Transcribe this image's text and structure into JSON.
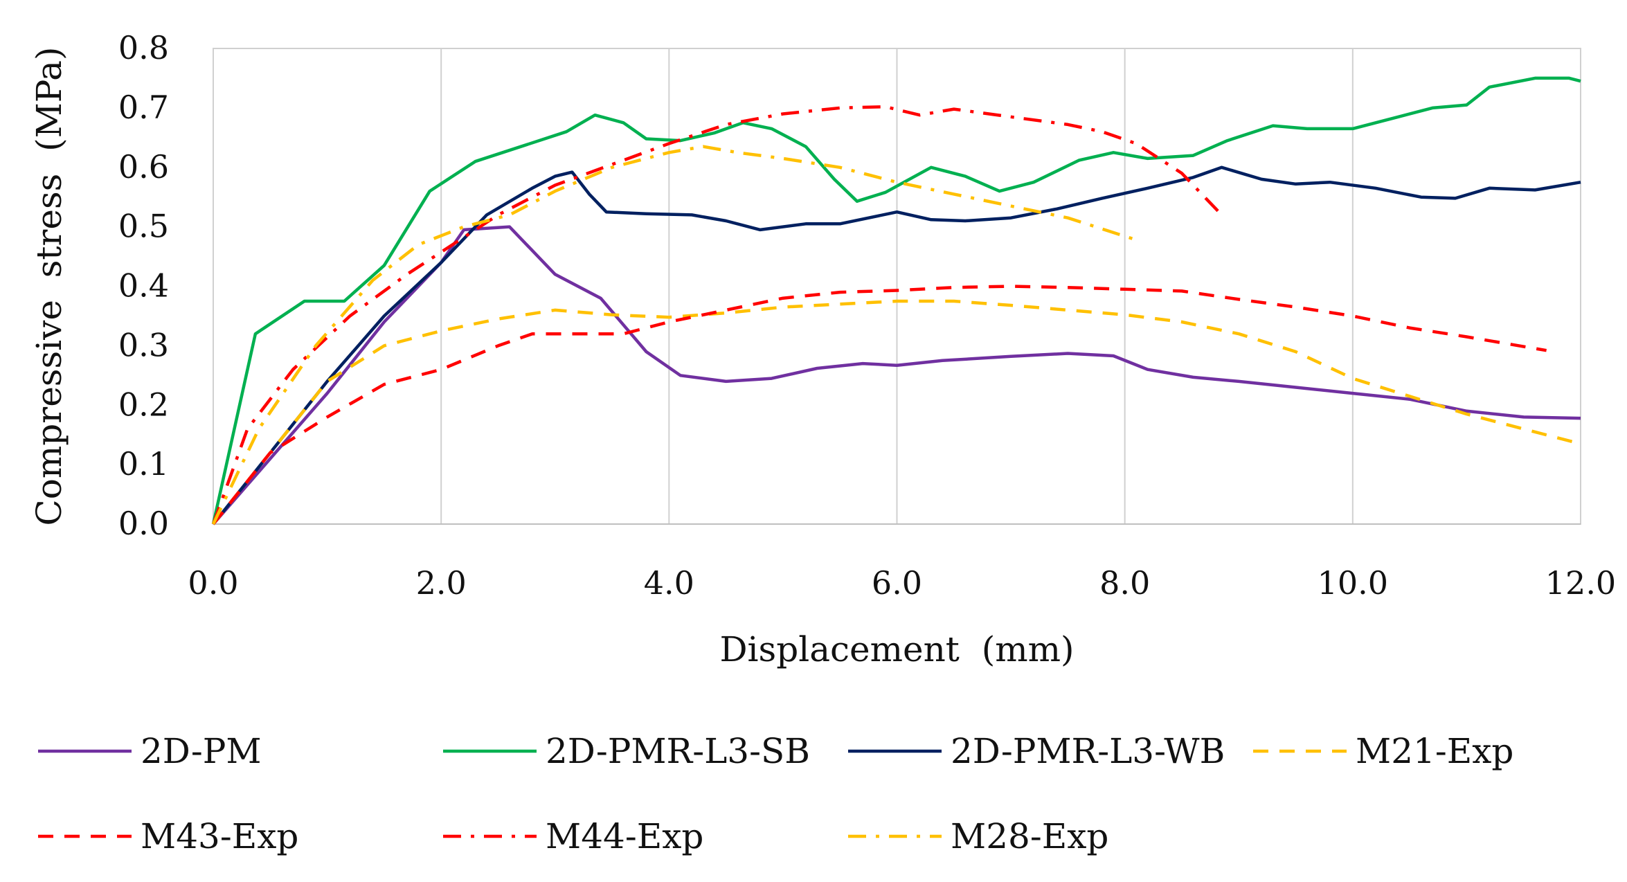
{
  "chart_data": {
    "type": "line",
    "title": "",
    "xlabel": "Displacement  (mm)",
    "ylabel": "Compressive  stress  (MPa)",
    "xlim": [
      0,
      12
    ],
    "ylim": [
      0,
      0.8
    ],
    "xticks": [
      "0.0",
      "2.0",
      "4.0",
      "6.0",
      "8.0",
      "10.0",
      "12.0"
    ],
    "yticks": [
      "0.0",
      "0.1",
      "0.2",
      "0.3",
      "0.4",
      "0.5",
      "0.6",
      "0.7",
      "0.8"
    ],
    "grid": "vertical",
    "legend_position": "bottom",
    "series": [
      {
        "name": "2D-PM",
        "color": "#7030a0",
        "dash": "solid",
        "points": [
          [
            0,
            0
          ],
          [
            0.5,
            0.11
          ],
          [
            1,
            0.22
          ],
          [
            1.5,
            0.34
          ],
          [
            2,
            0.44
          ],
          [
            2.2,
            0.495
          ],
          [
            2.6,
            0.5
          ],
          [
            3,
            0.42
          ],
          [
            3.4,
            0.38
          ],
          [
            3.8,
            0.29
          ],
          [
            4.1,
            0.25
          ],
          [
            4.5,
            0.24
          ],
          [
            4.9,
            0.245
          ],
          [
            5.3,
            0.262
          ],
          [
            5.7,
            0.27
          ],
          [
            6,
            0.267
          ],
          [
            6.4,
            0.275
          ],
          [
            7,
            0.282
          ],
          [
            7.5,
            0.287
          ],
          [
            7.9,
            0.283
          ],
          [
            8.2,
            0.26
          ],
          [
            8.6,
            0.247
          ],
          [
            9,
            0.24
          ],
          [
            9.5,
            0.23
          ],
          [
            10,
            0.22
          ],
          [
            10.5,
            0.21
          ],
          [
            11,
            0.19
          ],
          [
            11.5,
            0.18
          ],
          [
            12,
            0.178
          ]
        ]
      },
      {
        "name": "2D-PMR-L3-SB",
        "color": "#00b050",
        "dash": "solid",
        "points": [
          [
            0,
            0
          ],
          [
            0.37,
            0.32
          ],
          [
            0.8,
            0.375
          ],
          [
            1.15,
            0.375
          ],
          [
            1.5,
            0.435
          ],
          [
            1.9,
            0.56
          ],
          [
            2.3,
            0.61
          ],
          [
            2.7,
            0.635
          ],
          [
            3.1,
            0.66
          ],
          [
            3.35,
            0.688
          ],
          [
            3.6,
            0.675
          ],
          [
            3.8,
            0.648
          ],
          [
            4.1,
            0.645
          ],
          [
            4.4,
            0.658
          ],
          [
            4.65,
            0.675
          ],
          [
            4.9,
            0.665
          ],
          [
            5.2,
            0.635
          ],
          [
            5.45,
            0.58
          ],
          [
            5.65,
            0.543
          ],
          [
            5.9,
            0.558
          ],
          [
            6.3,
            0.6
          ],
          [
            6.6,
            0.585
          ],
          [
            6.9,
            0.56
          ],
          [
            7.2,
            0.575
          ],
          [
            7.6,
            0.612
          ],
          [
            7.9,
            0.625
          ],
          [
            8.2,
            0.615
          ],
          [
            8.6,
            0.62
          ],
          [
            8.9,
            0.645
          ],
          [
            9.3,
            0.67
          ],
          [
            9.6,
            0.665
          ],
          [
            10,
            0.665
          ],
          [
            10.4,
            0.685
          ],
          [
            10.7,
            0.7
          ],
          [
            11,
            0.705
          ],
          [
            11.2,
            0.735
          ],
          [
            11.6,
            0.75
          ],
          [
            11.9,
            0.75
          ],
          [
            12,
            0.745
          ]
        ]
      },
      {
        "name": "2D-PMR-L3-WB",
        "color": "#002060",
        "dash": "solid",
        "points": [
          [
            0,
            0
          ],
          [
            0.5,
            0.12
          ],
          [
            1,
            0.24
          ],
          [
            1.5,
            0.35
          ],
          [
            2,
            0.44
          ],
          [
            2.4,
            0.52
          ],
          [
            2.8,
            0.565
          ],
          [
            3,
            0.585
          ],
          [
            3.15,
            0.592
          ],
          [
            3.3,
            0.555
          ],
          [
            3.45,
            0.525
          ],
          [
            3.8,
            0.522
          ],
          [
            4.2,
            0.52
          ],
          [
            4.5,
            0.51
          ],
          [
            4.8,
            0.495
          ],
          [
            5.2,
            0.505
          ],
          [
            5.5,
            0.505
          ],
          [
            6,
            0.525
          ],
          [
            6.3,
            0.512
          ],
          [
            6.6,
            0.51
          ],
          [
            7,
            0.515
          ],
          [
            7.4,
            0.53
          ],
          [
            7.8,
            0.548
          ],
          [
            8.2,
            0.565
          ],
          [
            8.6,
            0.583
          ],
          [
            8.85,
            0.6
          ],
          [
            9.2,
            0.58
          ],
          [
            9.5,
            0.572
          ],
          [
            9.8,
            0.575
          ],
          [
            10.2,
            0.565
          ],
          [
            10.6,
            0.55
          ],
          [
            10.9,
            0.548
          ],
          [
            11.2,
            0.565
          ],
          [
            11.6,
            0.562
          ],
          [
            12,
            0.575
          ]
        ]
      },
      {
        "name": "M21-Exp",
        "color": "#ffc000",
        "dash": "dash",
        "points": [
          [
            0,
            0
          ],
          [
            0.5,
            0.12
          ],
          [
            1,
            0.24
          ],
          [
            1.5,
            0.3
          ],
          [
            2,
            0.325
          ],
          [
            2.5,
            0.345
          ],
          [
            3,
            0.36
          ],
          [
            3.5,
            0.352
          ],
          [
            4,
            0.348
          ],
          [
            4.5,
            0.355
          ],
          [
            5,
            0.365
          ],
          [
            5.5,
            0.37
          ],
          [
            6,
            0.375
          ],
          [
            6.5,
            0.375
          ],
          [
            7,
            0.368
          ],
          [
            7.5,
            0.36
          ],
          [
            8,
            0.352
          ],
          [
            8.5,
            0.34
          ],
          [
            9,
            0.32
          ],
          [
            9.5,
            0.29
          ],
          [
            10,
            0.245
          ],
          [
            10.5,
            0.215
          ],
          [
            11,
            0.185
          ],
          [
            11.5,
            0.16
          ],
          [
            12,
            0.135
          ]
        ]
      },
      {
        "name": "M43-Exp",
        "color": "#ff0000",
        "dash": "dash",
        "points": [
          [
            0,
            0
          ],
          [
            0.5,
            0.12
          ],
          [
            1,
            0.18
          ],
          [
            1.5,
            0.235
          ],
          [
            2,
            0.26
          ],
          [
            2.5,
            0.3
          ],
          [
            2.8,
            0.32
          ],
          [
            3.1,
            0.32
          ],
          [
            3.6,
            0.32
          ],
          [
            4,
            0.34
          ],
          [
            4.5,
            0.36
          ],
          [
            5,
            0.38
          ],
          [
            5.5,
            0.39
          ],
          [
            6,
            0.393
          ],
          [
            6.5,
            0.398
          ],
          [
            7,
            0.4
          ],
          [
            7.5,
            0.398
          ],
          [
            8,
            0.395
          ],
          [
            8.5,
            0.392
          ],
          [
            9,
            0.378
          ],
          [
            9.5,
            0.365
          ],
          [
            10,
            0.35
          ],
          [
            10.5,
            0.33
          ],
          [
            11,
            0.315
          ],
          [
            11.7,
            0.292
          ]
        ]
      },
      {
        "name": "M44-Exp",
        "color": "#ff0000",
        "dash": "dashdot",
        "points": [
          [
            0,
            0
          ],
          [
            0.3,
            0.16
          ],
          [
            0.7,
            0.26
          ],
          [
            1.2,
            0.35
          ],
          [
            1.7,
            0.42
          ],
          [
            2.1,
            0.47
          ],
          [
            2.5,
            0.52
          ],
          [
            3,
            0.57
          ],
          [
            3.5,
            0.605
          ],
          [
            4,
            0.64
          ],
          [
            4.5,
            0.672
          ],
          [
            5,
            0.69
          ],
          [
            5.5,
            0.7
          ],
          [
            5.9,
            0.702
          ],
          [
            6.2,
            0.688
          ],
          [
            6.5,
            0.698
          ],
          [
            7,
            0.685
          ],
          [
            7.5,
            0.672
          ],
          [
            7.8,
            0.66
          ],
          [
            8.1,
            0.64
          ],
          [
            8.5,
            0.59
          ],
          [
            8.85,
            0.52
          ]
        ]
      },
      {
        "name": "M28-Exp",
        "color": "#ffc000",
        "dash": "dashdot",
        "points": [
          [
            0,
            0
          ],
          [
            0.4,
            0.16
          ],
          [
            0.9,
            0.3
          ],
          [
            1.4,
            0.41
          ],
          [
            1.8,
            0.47
          ],
          [
            2.2,
            0.5
          ],
          [
            2.6,
            0.52
          ],
          [
            3,
            0.56
          ],
          [
            3.5,
            0.6
          ],
          [
            4,
            0.625
          ],
          [
            4.3,
            0.635
          ],
          [
            4.6,
            0.625
          ],
          [
            5,
            0.615
          ],
          [
            5.5,
            0.6
          ],
          [
            6,
            0.575
          ],
          [
            6.5,
            0.555
          ],
          [
            7,
            0.535
          ],
          [
            7.5,
            0.515
          ],
          [
            8.1,
            0.478
          ]
        ]
      }
    ]
  }
}
